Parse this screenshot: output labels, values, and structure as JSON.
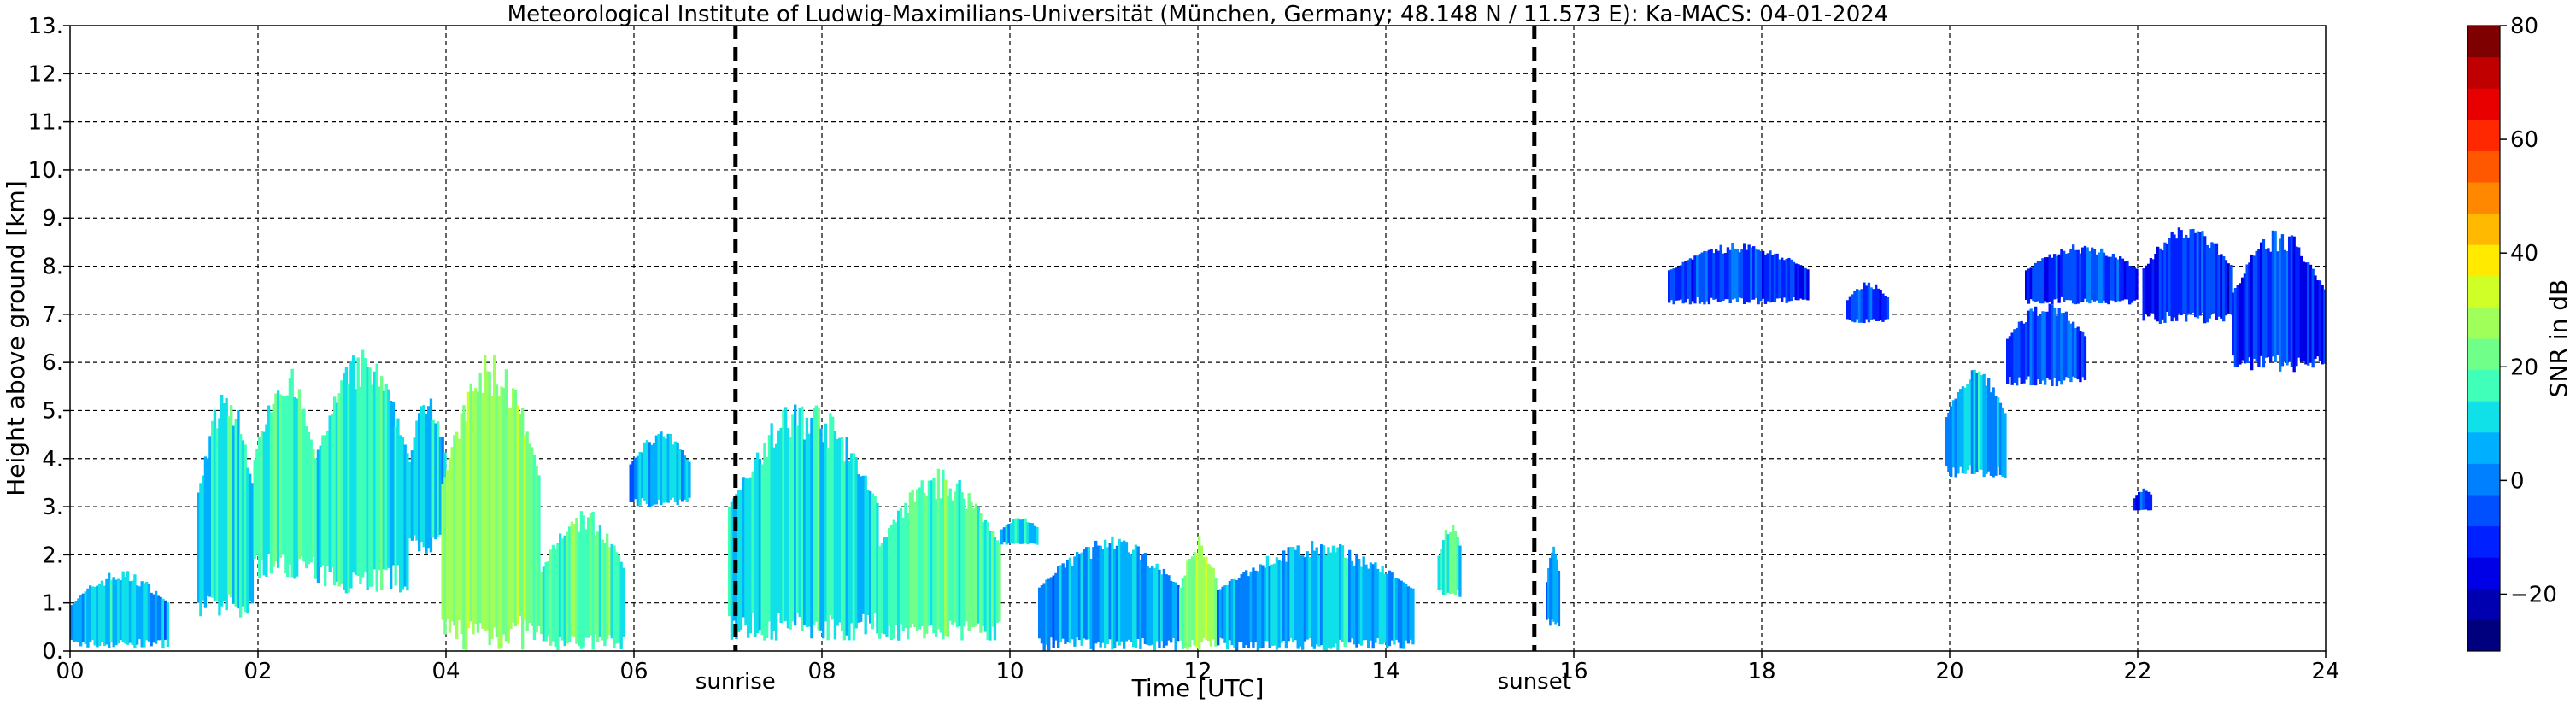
{
  "chart_data": {
    "type": "heatmap",
    "title": "Meteorological Institute of Ludwig-Maximilians-Universität (München, Germany; 48.148 N / 11.573 E):    Ka-MACS: 04-01-2024",
    "xlabel": "Time [UTC]",
    "ylabel": "Height above ground [km]",
    "xlim": [
      0,
      24
    ],
    "ylim": [
      0,
      13
    ],
    "x_ticks": [
      0,
      2,
      4,
      6,
      8,
      10,
      12,
      14,
      16,
      18,
      20,
      22,
      24
    ],
    "x_tick_labels": [
      "00",
      "02",
      "04",
      "06",
      "08",
      "10",
      "12",
      "14",
      "16",
      "18",
      "20",
      "22",
      "24"
    ],
    "y_ticks": [
      0,
      1,
      2,
      3,
      4,
      5,
      6,
      7,
      8,
      9,
      10,
      11,
      12,
      13
    ],
    "y_tick_labels": [
      "0.",
      "1.",
      "2.",
      "3.",
      "4.",
      "5.",
      "6.",
      "7.",
      "8.",
      "9.",
      "10.",
      "11.",
      "12.",
      "13."
    ],
    "grid": true,
    "events": [
      {
        "label": "sunrise",
        "time": 7.08
      },
      {
        "label": "sunset",
        "time": 15.58
      }
    ],
    "colorbar": {
      "label": "SNR in dB",
      "range": [
        -30,
        80
      ],
      "ticks": [
        -20,
        0,
        20,
        40,
        60,
        80
      ],
      "tick_labels": [
        "−20",
        "0",
        "20",
        "40",
        "60",
        "80"
      ],
      "colors": [
        "#00007f",
        "#0000b0",
        "#0000e6",
        "#0020ff",
        "#0050ff",
        "#0080ff",
        "#00b0ff",
        "#10e0e8",
        "#40ffb8",
        "#70ff88",
        "#a0ff58",
        "#d0ff28",
        "#ffea00",
        "#ffb900",
        "#ff8800",
        "#ff5800",
        "#ff2800",
        "#e80000",
        "#c00000",
        "#7f0000"
      ]
    },
    "echo_regions": [
      {
        "t0": 0.0,
        "t1": 1.05,
        "z0": 0.05,
        "z1": 1.7,
        "snr": 3
      },
      {
        "t0": 1.35,
        "t1": 1.95,
        "z0": 0.6,
        "z1": 5.5,
        "snr": 8
      },
      {
        "t0": 1.95,
        "t1": 2.6,
        "z0": 1.5,
        "z1": 6.0,
        "snr": 12
      },
      {
        "t0": 2.6,
        "t1": 3.6,
        "z0": 1.2,
        "z1": 6.3,
        "snr": 10
      },
      {
        "t0": 3.6,
        "t1": 4.0,
        "z0": 2.0,
        "z1": 5.5,
        "snr": 6
      },
      {
        "t0": 3.95,
        "t1": 5.0,
        "z0": 0.0,
        "z1": 6.3,
        "snr": 22
      },
      {
        "t0": 5.0,
        "t1": 5.9,
        "z0": 0.0,
        "z1": 3.0,
        "snr": 15
      },
      {
        "t0": 5.95,
        "t1": 6.6,
        "z0": 3.0,
        "z1": 4.6,
        "snr": 2
      },
      {
        "t0": 7.0,
        "t1": 8.6,
        "z0": 0.2,
        "z1": 5.3,
        "snr": 9
      },
      {
        "t0": 8.6,
        "t1": 9.9,
        "z0": 0.2,
        "z1": 3.8,
        "snr": 14
      },
      {
        "t0": 9.9,
        "t1": 10.3,
        "z0": 2.2,
        "z1": 2.8,
        "snr": 4
      },
      {
        "t0": 10.3,
        "t1": 11.8,
        "z0": 0.0,
        "z1": 2.4,
        "snr": 1
      },
      {
        "t0": 11.8,
        "t1": 12.2,
        "z0": 0.0,
        "z1": 2.4,
        "snr": 20
      },
      {
        "t0": 12.2,
        "t1": 14.3,
        "z0": 0.0,
        "z1": 2.3,
        "snr": 2
      },
      {
        "t0": 14.55,
        "t1": 14.8,
        "z0": 1.1,
        "z1": 2.7,
        "snr": 12
      },
      {
        "t0": 15.7,
        "t1": 15.85,
        "z0": 0.5,
        "z1": 2.2,
        "snr": -4
      },
      {
        "t0": 17.0,
        "t1": 18.5,
        "z0": 7.2,
        "z1": 8.5,
        "snr": -12
      },
      {
        "t0": 18.9,
        "t1": 19.35,
        "z0": 6.8,
        "z1": 7.7,
        "snr": -12
      },
      {
        "t0": 19.95,
        "t1": 20.6,
        "z0": 3.6,
        "z1": 5.9,
        "snr": 2
      },
      {
        "t0": 20.6,
        "t1": 21.45,
        "z0": 5.5,
        "z1": 7.3,
        "snr": -10
      },
      {
        "t0": 20.8,
        "t1": 22.0,
        "z0": 7.2,
        "z1": 8.5,
        "snr": -12
      },
      {
        "t0": 22.05,
        "t1": 23.0,
        "z0": 6.8,
        "z1": 8.9,
        "snr": -14
      },
      {
        "t0": 23.0,
        "t1": 24.0,
        "z0": 5.8,
        "z1": 8.8,
        "snr": -13
      },
      {
        "t0": 21.95,
        "t1": 22.15,
        "z0": 2.9,
        "z1": 3.4,
        "snr": -14
      }
    ]
  }
}
